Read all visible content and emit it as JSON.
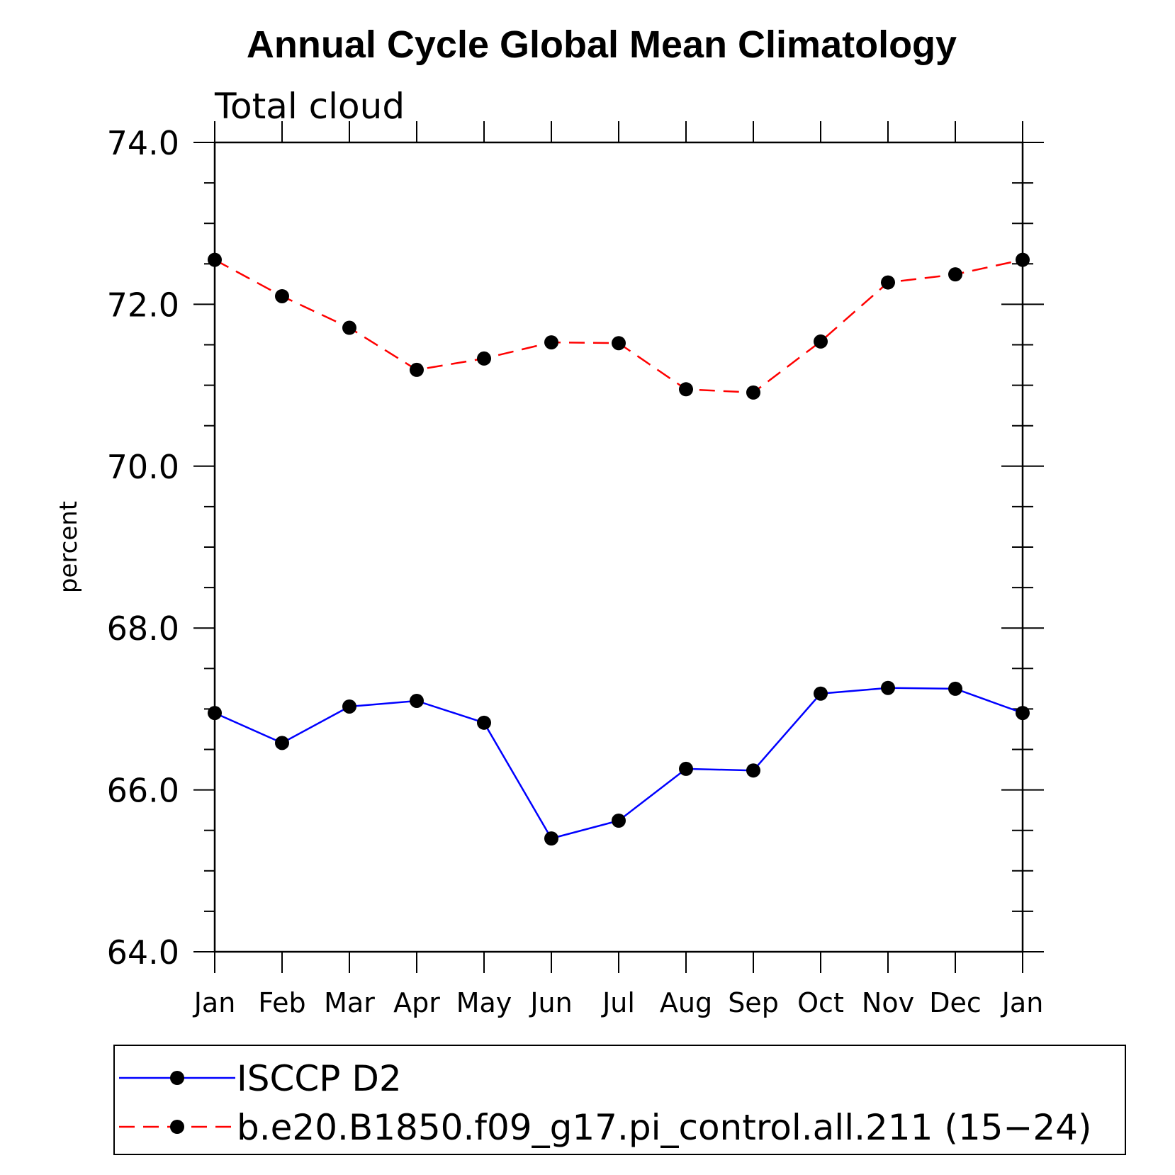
{
  "chart_data": {
    "type": "line",
    "title": "Annual Cycle Global Mean Climatology",
    "subtitle": "Total cloud",
    "ylabel": "percent",
    "xlabel": "",
    "categories": [
      "Jan",
      "Feb",
      "Mar",
      "Apr",
      "May",
      "Jun",
      "Jul",
      "Aug",
      "Sep",
      "Oct",
      "Nov",
      "Dec",
      "Jan"
    ],
    "ylim": [
      64.0,
      74.0
    ],
    "yticks": [
      "64.0",
      "66.0",
      "68.0",
      "70.0",
      "72.0",
      "74.0"
    ],
    "series": [
      {
        "name": "ISCCP D2",
        "color": "#0000ff",
        "dash": "solid",
        "marker": "circle",
        "values": [
          66.95,
          66.58,
          67.03,
          67.1,
          66.83,
          65.4,
          65.62,
          66.26,
          66.24,
          67.19,
          67.26,
          67.25,
          66.95
        ]
      },
      {
        "name": "b.e20.B1850.f09_g17.pi_control.all.211 (15−24)",
        "color": "#ff0000",
        "dash": "dashed",
        "marker": "circle",
        "values": [
          72.55,
          72.1,
          71.71,
          71.19,
          71.33,
          71.53,
          71.52,
          70.95,
          70.91,
          71.54,
          72.27,
          72.37,
          72.55
        ]
      }
    ],
    "grid": false,
    "legend": "bottom"
  }
}
